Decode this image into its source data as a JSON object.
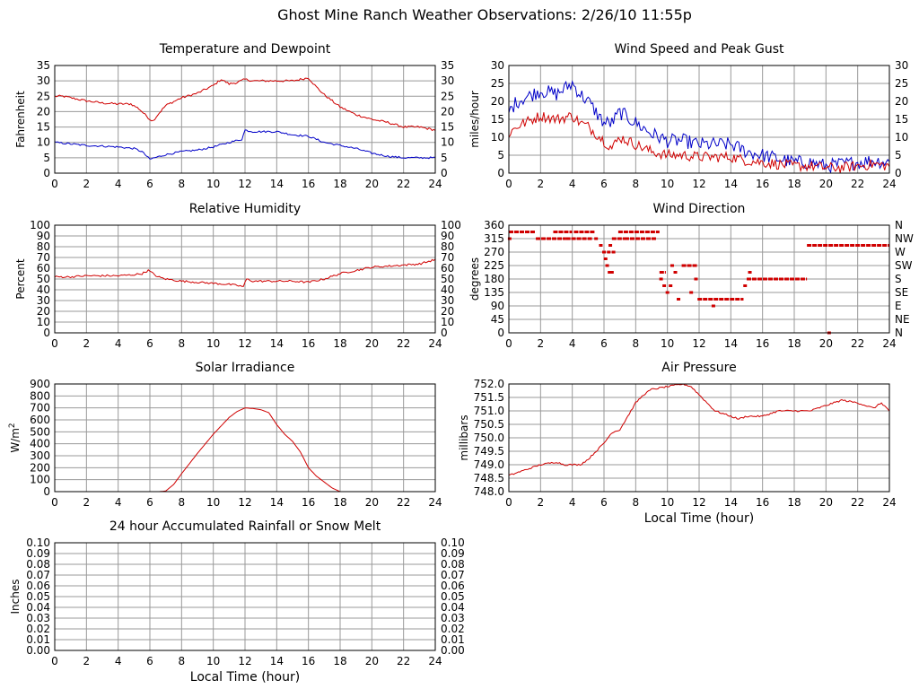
{
  "page": {
    "title": "Ghost Mine Ranch Weather Observations: 2/26/10 11:55p"
  },
  "colors": {
    "primary": "#d00000",
    "secondary": "#0000c8",
    "grid": "#999999",
    "axis": "#000000"
  },
  "chart_data": [
    {
      "id": "temperature",
      "type": "line",
      "title": "Temperature and Dewpoint",
      "xlabel": "",
      "ylabel": "Fahrenheit",
      "xlim": [
        0,
        24
      ],
      "ylim": [
        0,
        35
      ],
      "x_ticks": [
        0,
        2,
        4,
        6,
        8,
        10,
        12,
        14,
        16,
        18,
        20,
        22,
        24
      ],
      "y_ticks": [
        0,
        5,
        10,
        15,
        20,
        25,
        30,
        35
      ],
      "y_tick_labels": [
        "0",
        "5",
        "10",
        "15",
        "20",
        "25",
        "30",
        "35"
      ],
      "right_axis_labels": true,
      "grid": true,
      "series": [
        {
          "color": "#d00000",
          "noise": 0.35,
          "x": [
            0,
            0.5,
            1,
            2,
            3,
            4,
            4.8,
            5.3,
            5.7,
            6,
            6.2,
            6.5,
            7,
            8,
            9,
            10,
            10.5,
            11,
            11.5,
            12,
            12.5,
            13,
            14,
            15,
            15.5,
            16,
            16.5,
            17,
            18,
            19,
            20,
            21,
            22,
            23,
            24
          ],
          "y": [
            25,
            25,
            24.5,
            23.5,
            22.8,
            22.5,
            22.5,
            21,
            19,
            17.5,
            17,
            19,
            22,
            24.5,
            26,
            28.5,
            30.5,
            29,
            29.5,
            30.5,
            30,
            30,
            30,
            30,
            30.5,
            31,
            28,
            25.5,
            21.5,
            19,
            17.5,
            16.5,
            15,
            15,
            14
          ]
        },
        {
          "color": "#0000c8",
          "noise": 0.3,
          "x": [
            0,
            1,
            2,
            3,
            4,
            5,
            5.5,
            5.8,
            6,
            6.3,
            7,
            8,
            9,
            10,
            11,
            11.8,
            12,
            12.5,
            13,
            14,
            15,
            16,
            16.5,
            17,
            18,
            19,
            20,
            21,
            22,
            23,
            24
          ],
          "y": [
            10,
            9.5,
            9,
            8.8,
            8.5,
            8,
            7,
            5.5,
            4.5,
            5,
            6,
            7,
            7.5,
            8.5,
            10,
            11,
            14,
            13.5,
            13.5,
            13.5,
            12.5,
            12,
            11,
            10,
            9,
            8,
            6.5,
            5.5,
            5,
            5,
            5
          ]
        }
      ]
    },
    {
      "id": "wind-speed",
      "type": "line",
      "title": "Wind Speed and Peak Gust",
      "xlabel": "",
      "ylabel": "miles/hour",
      "xlim": [
        0,
        24
      ],
      "ylim": [
        0,
        30
      ],
      "x_ticks": [
        0,
        2,
        4,
        6,
        8,
        10,
        12,
        14,
        16,
        18,
        20,
        22,
        24
      ],
      "y_ticks": [
        0,
        5,
        10,
        15,
        20,
        25,
        30
      ],
      "y_tick_labels": [
        "0",
        "5",
        "10",
        "15",
        "20",
        "25",
        "30"
      ],
      "right_axis_labels": true,
      "grid": true,
      "series": [
        {
          "color": "#0000c8",
          "noise": 2.0,
          "x": [
            0,
            0.5,
            1,
            2,
            3,
            4,
            4.5,
            5,
            6,
            6.5,
            7,
            8,
            9,
            10,
            11,
            12,
            13,
            14,
            15,
            16,
            17,
            18,
            19,
            20,
            21,
            22,
            23,
            24
          ],
          "y": [
            17,
            20,
            21,
            23,
            22,
            25,
            22,
            20,
            14,
            14,
            17,
            14,
            11,
            9,
            9,
            8,
            8,
            8,
            6,
            5,
            4,
            3,
            3,
            2,
            2.5,
            3,
            3.5,
            3
          ]
        },
        {
          "color": "#d00000",
          "noise": 1.5,
          "x": [
            0,
            0.5,
            1,
            2,
            3,
            4,
            4.5,
            5,
            6,
            6.5,
            7,
            8,
            9,
            10,
            11,
            12,
            13,
            14,
            15,
            16,
            17,
            18,
            19,
            20,
            21,
            22,
            23,
            24
          ],
          "y": [
            11,
            13,
            14,
            16,
            15,
            16,
            14,
            13,
            9,
            7,
            10,
            8,
            6,
            5,
            5,
            4.5,
            4.5,
            4.5,
            3.5,
            3,
            2.5,
            2,
            2,
            1.5,
            1.5,
            2,
            2.5,
            2
          ]
        }
      ]
    },
    {
      "id": "humidity",
      "type": "line",
      "title": "Relative Humidity",
      "xlabel": "",
      "ylabel": "Percent",
      "xlim": [
        0,
        24
      ],
      "ylim": [
        0,
        100
      ],
      "x_ticks": [
        0,
        2,
        4,
        6,
        8,
        10,
        12,
        14,
        16,
        18,
        20,
        22,
        24
      ],
      "y_ticks": [
        0,
        10,
        20,
        30,
        40,
        50,
        60,
        70,
        80,
        90,
        100
      ],
      "y_tick_labels": [
        "0",
        "10",
        "20",
        "30",
        "40",
        "50",
        "60",
        "70",
        "80",
        "90",
        "100"
      ],
      "right_axis_labels": true,
      "grid": true,
      "series": [
        {
          "color": "#d00000",
          "noise": 0.9,
          "x": [
            0,
            1,
            2,
            3,
            4,
            5,
            5.5,
            5.9,
            6.1,
            6.5,
            7,
            8,
            9,
            10,
            11,
            11.5,
            11.9,
            12.1,
            12.5,
            13,
            14,
            15,
            16,
            17,
            18,
            19,
            20,
            21,
            22,
            23,
            24
          ],
          "y": [
            52,
            52,
            53,
            53,
            53,
            54,
            55,
            58,
            56,
            52,
            50,
            48,
            47,
            46,
            45,
            44,
            43,
            50,
            48,
            48,
            48,
            48,
            47,
            50,
            55,
            58,
            61,
            62,
            63,
            64,
            68
          ]
        }
      ]
    },
    {
      "id": "wind-direction",
      "type": "scatter",
      "title": "Wind Direction",
      "xlabel": "",
      "ylabel": "degrees",
      "xlim": [
        0,
        24
      ],
      "ylim": [
        0,
        360
      ],
      "x_ticks": [
        0,
        2,
        4,
        6,
        8,
        10,
        12,
        14,
        16,
        18,
        20,
        22,
        24
      ],
      "y_ticks": [
        0,
        45,
        90,
        135,
        180,
        225,
        270,
        315,
        360
      ],
      "y_tick_labels": [
        "0",
        "45",
        "90",
        "135",
        "180",
        "225",
        "270",
        "315",
        "360"
      ],
      "right_tick_labels": [
        "N",
        "NE",
        "E",
        "SE",
        "S",
        "SW",
        "W",
        "NW",
        "N"
      ],
      "grid": true,
      "segments": [
        {
          "x0": 0,
          "x1": 1.7,
          "y": 337.5
        },
        {
          "x0": 1.7,
          "x1": 3.6,
          "y": 315
        },
        {
          "x0": 2.8,
          "x1": 4.0,
          "y": 337.5
        },
        {
          "x0": 3.6,
          "x1": 5.3,
          "y": 315
        },
        {
          "x0": 4.1,
          "x1": 5.4,
          "y": 337.5
        },
        {
          "x0": 6.5,
          "x1": 7.3,
          "y": 315
        },
        {
          "x0": 6.9,
          "x1": 9.5,
          "y": 337.5
        },
        {
          "x0": 7.3,
          "x1": 9.3,
          "y": 315
        },
        {
          "x0": 9.5,
          "x1": 9.9,
          "y": 202.5
        },
        {
          "x0": 10.9,
          "x1": 11.9,
          "y": 225
        },
        {
          "x0": 11.9,
          "x1": 14.8,
          "y": 112.5
        },
        {
          "x0": 15.0,
          "x1": 18.8,
          "y": 180
        },
        {
          "x0": 18.8,
          "x1": 24,
          "y": 292.5
        }
      ],
      "points": [
        [
          0.05,
          315
        ],
        [
          5.5,
          315
        ],
        [
          5.8,
          292.5
        ],
        [
          6.0,
          270
        ],
        [
          6.1,
          247.5
        ],
        [
          6.2,
          225
        ],
        [
          6.35,
          202.5
        ],
        [
          6.5,
          202.5
        ],
        [
          6.3,
          270
        ],
        [
          6.6,
          270
        ],
        [
          6.4,
          292.5
        ],
        [
          9.6,
          180
        ],
        [
          9.8,
          157.5
        ],
        [
          10.0,
          135
        ],
        [
          10.2,
          157.5
        ],
        [
          10.3,
          225
        ],
        [
          10.5,
          202.5
        ],
        [
          10.7,
          112.5
        ],
        [
          11.5,
          135
        ],
        [
          11.8,
          180
        ],
        [
          12.9,
          90
        ],
        [
          14.9,
          157.5
        ],
        [
          15.2,
          202.5
        ],
        [
          20.2,
          0
        ]
      ]
    },
    {
      "id": "solar",
      "type": "line",
      "title": "Solar Irradiance",
      "xlabel": "",
      "ylabel": "W/m",
      "ylabel_sup": "2",
      "xlim": [
        0,
        24
      ],
      "ylim": [
        0,
        900
      ],
      "x_ticks": [
        0,
        2,
        4,
        6,
        8,
        10,
        12,
        14,
        16,
        18,
        20,
        22,
        24
      ],
      "y_ticks": [
        0,
        100,
        200,
        300,
        400,
        500,
        600,
        700,
        800,
        900
      ],
      "y_tick_labels": [
        "0",
        "100",
        "200",
        "300",
        "400",
        "500",
        "600",
        "700",
        "800",
        "900"
      ],
      "right_axis_labels": false,
      "grid": true,
      "series": [
        {
          "color": "#d00000",
          "noise": 0,
          "x": [
            0,
            6.6,
            7,
            7.5,
            8,
            9,
            10,
            11,
            11.5,
            12,
            12.5,
            13,
            13.5,
            14,
            14.5,
            15,
            15.5,
            16,
            16.5,
            17,
            17.5,
            18,
            24
          ],
          "y": [
            0,
            0,
            5,
            60,
            150,
            320,
            480,
            620,
            670,
            700,
            695,
            685,
            660,
            560,
            480,
            420,
            330,
            200,
            130,
            80,
            30,
            0,
            0
          ]
        }
      ]
    },
    {
      "id": "pressure",
      "type": "line",
      "title": "Air Pressure",
      "xlabel": "Local Time (hour)",
      "ylabel": "millibars",
      "xlim": [
        0,
        24
      ],
      "ylim": [
        748.0,
        752.0
      ],
      "x_ticks": [
        0,
        2,
        4,
        6,
        8,
        10,
        12,
        14,
        16,
        18,
        20,
        22,
        24
      ],
      "y_ticks": [
        748.0,
        748.5,
        749.0,
        749.5,
        750.0,
        750.5,
        751.0,
        751.5,
        752.0
      ],
      "y_tick_labels": [
        "748.0",
        "748.5",
        "749.0",
        "749.5",
        "750.0",
        "750.5",
        "751.0",
        "751.5",
        "752.0"
      ],
      "right_axis_labels": false,
      "grid": true,
      "series": [
        {
          "color": "#d00000",
          "noise": 0.03,
          "x": [
            0,
            0.5,
            1,
            2,
            3,
            3.5,
            4,
            4.5,
            5,
            5.5,
            6,
            6.5,
            7,
            7.5,
            8,
            8.5,
            9,
            10,
            11,
            11.5,
            12,
            12.5,
            13,
            14,
            14.5,
            15,
            16,
            17,
            18,
            19,
            20,
            21,
            22,
            23,
            23.5,
            24
          ],
          "y": [
            748.6,
            748.7,
            748.8,
            749.0,
            749.1,
            749.0,
            749.0,
            749.0,
            749.2,
            749.5,
            749.8,
            750.2,
            750.3,
            750.8,
            751.3,
            751.6,
            751.8,
            751.9,
            752.0,
            751.9,
            751.6,
            751.3,
            751.0,
            750.8,
            750.7,
            750.8,
            750.8,
            751.0,
            751.0,
            751.0,
            751.2,
            751.4,
            751.3,
            751.1,
            751.3,
            751.0
          ]
        }
      ]
    },
    {
      "id": "rainfall",
      "type": "line",
      "title": "24 hour Accumulated Rainfall or Snow Melt",
      "xlabel": "Local Time (hour)",
      "ylabel": "Inches",
      "xlim": [
        0,
        24
      ],
      "ylim": [
        0,
        0.1
      ],
      "x_ticks": [
        0,
        2,
        4,
        6,
        8,
        10,
        12,
        14,
        16,
        18,
        20,
        22,
        24
      ],
      "y_ticks": [
        0,
        0.01,
        0.02,
        0.03,
        0.04,
        0.05,
        0.06,
        0.07,
        0.08,
        0.09,
        0.1
      ],
      "y_tick_labels": [
        "0.00",
        "0.01",
        "0.02",
        "0.03",
        "0.04",
        "0.05",
        "0.06",
        "0.07",
        "0.08",
        "0.09",
        "0.10"
      ],
      "right_axis_labels": true,
      "grid": true,
      "series": [
        {
          "color": "#d00000",
          "noise": 0,
          "x": [
            0,
            24
          ],
          "y": [
            0,
            0
          ]
        }
      ]
    }
  ]
}
